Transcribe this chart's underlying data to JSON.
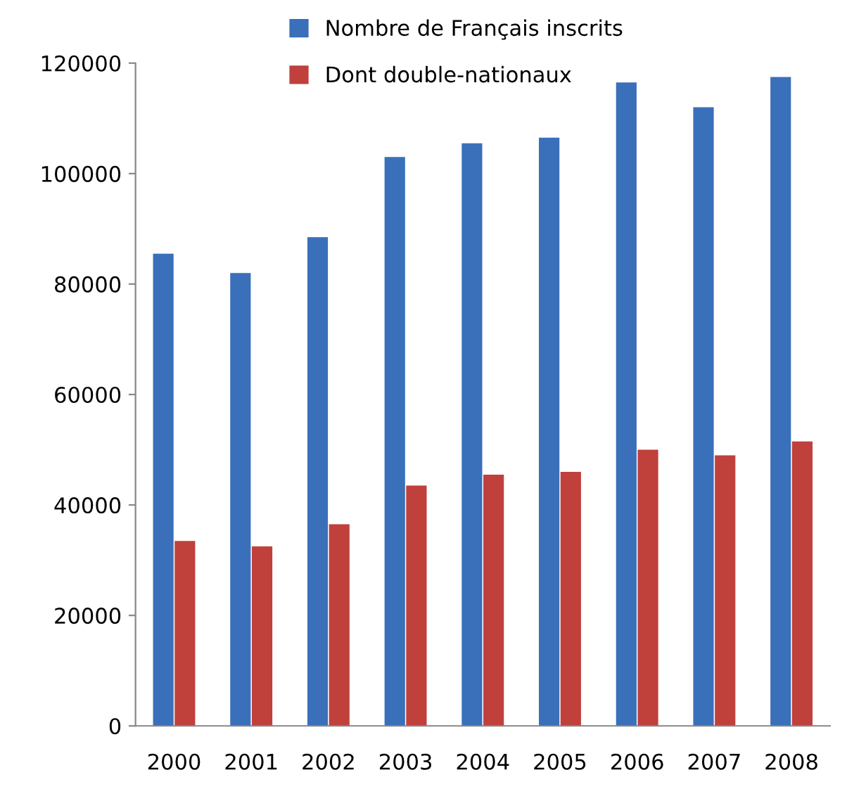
{
  "chart_data": {
    "type": "bar",
    "categories": [
      "2000",
      "2001",
      "2002",
      "2003",
      "2004",
      "2005",
      "2006",
      "2007",
      "2008"
    ],
    "series": [
      {
        "name": "Nombre de Français inscrits",
        "color": "#3a6fba",
        "values": [
          85500,
          82000,
          88500,
          103000,
          105500,
          106500,
          116500,
          112000,
          117500
        ]
      },
      {
        "name": "Dont double-nationaux",
        "color": "#c0403c",
        "values": [
          33500,
          32500,
          36500,
          43500,
          45500,
          46000,
          50000,
          49000,
          51500
        ]
      }
    ],
    "ylim": [
      0,
      120000
    ],
    "yticks": [
      0,
      20000,
      40000,
      60000,
      80000,
      100000,
      120000
    ],
    "grid": false,
    "legend": "top left"
  }
}
